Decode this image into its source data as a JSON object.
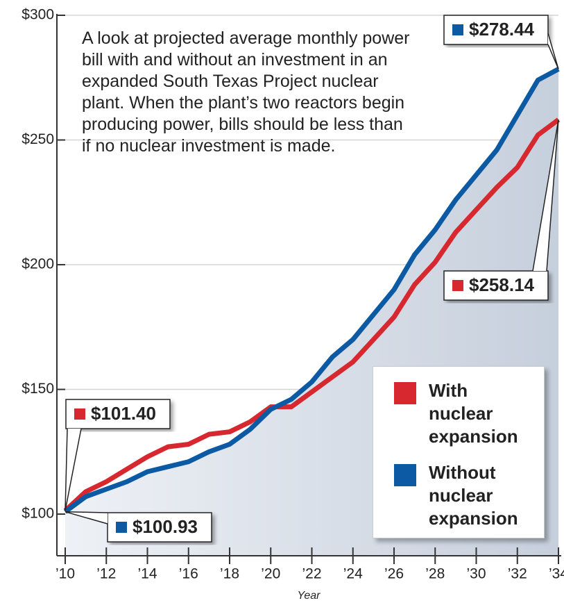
{
  "chart_data": {
    "type": "line",
    "description": "A look at projected average monthly power bill with and without an investment in an expanded South Texas Project nuclear plant. When the plant’s two reactors begin producing power, bills should be less than if no nuclear investment is made.",
    "x_label": "Year",
    "x": [
      2010,
      2011,
      2012,
      2013,
      2014,
      2015,
      2016,
      2017,
      2018,
      2019,
      2020,
      2021,
      2022,
      2023,
      2024,
      2025,
      2026,
      2027,
      2028,
      2029,
      2030,
      2031,
      2032,
      2033,
      2034
    ],
    "series": [
      {
        "name": "With nuclear expansion",
        "color": "#d7282f",
        "values": [
          101.4,
          109,
          113,
          118,
          123,
          127,
          128,
          132,
          133,
          137,
          143,
          143,
          149,
          155,
          161,
          170,
          179,
          192,
          201,
          213,
          222,
          231,
          239,
          252,
          258.14
        ]
      },
      {
        "name": "Without nuclear expansion",
        "color": "#0b5aa3",
        "values": [
          100.93,
          107,
          110,
          113,
          117,
          119,
          121,
          125,
          128,
          134,
          142,
          146,
          153,
          163,
          170,
          180,
          190,
          204,
          214,
          226,
          236,
          246,
          260,
          274,
          278.44
        ]
      }
    ],
    "annotations": [
      {
        "series": 0,
        "index": 0,
        "text": "$101.40"
      },
      {
        "series": 1,
        "index": 0,
        "text": "$100.93"
      },
      {
        "series": 0,
        "index": 24,
        "text": "$258.14"
      },
      {
        "series": 1,
        "index": 24,
        "text": "$278.44"
      }
    ],
    "xlim": [
      2010,
      2034
    ],
    "xticks": [
      {
        "value": 2010,
        "label": "’10"
      },
      {
        "value": 2012,
        "label": "’12"
      },
      {
        "value": 2014,
        "label": "’14"
      },
      {
        "value": 2016,
        "label": "’16"
      },
      {
        "value": 2018,
        "label": "’18"
      },
      {
        "value": 2020,
        "label": "’20"
      },
      {
        "value": 2022,
        "label": "’22"
      },
      {
        "value": 2024,
        "label": "’24"
      },
      {
        "value": 2026,
        "label": "’26"
      },
      {
        "value": 2028,
        "label": "’28"
      },
      {
        "value": 2030,
        "label": "’30"
      },
      {
        "value": 2032,
        "label": "’32"
      },
      {
        "value": 2034,
        "label": "’34"
      }
    ],
    "ylim": [
      83.3,
      300
    ],
    "yticks": [
      {
        "value": 100,
        "label": "$100"
      },
      {
        "value": 150,
        "label": "$150"
      },
      {
        "value": 200,
        "label": "$200"
      },
      {
        "value": 250,
        "label": "$250"
      },
      {
        "value": 300,
        "label": "$300"
      }
    ],
    "grid": true,
    "legend": "lower right"
  }
}
